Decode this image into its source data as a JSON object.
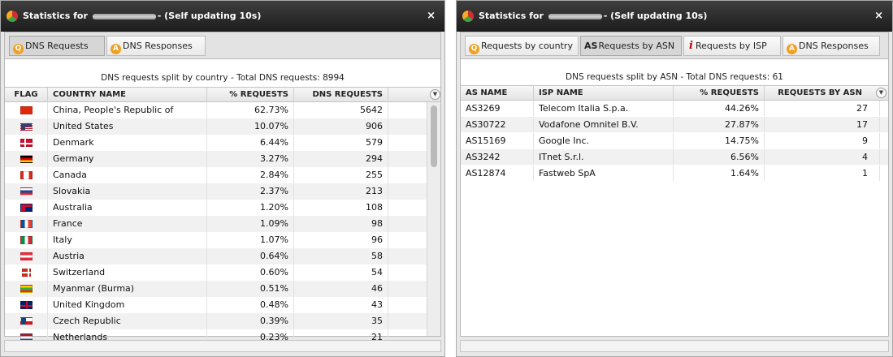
{
  "left_window": {
    "title_prefix": "Statistics for",
    "title_suffix": "- (Self updating 10s)",
    "close_glyph": "×",
    "tabs": [
      {
        "label": "DNS Requests",
        "icon": "Q",
        "icon_name": "requests-icon",
        "active": true
      },
      {
        "label": "DNS Responses",
        "icon": "A",
        "icon_name": "responses-icon",
        "active": false
      }
    ],
    "caption": "DNS requests split by country - Total DNS requests: 8994",
    "columns": [
      "FLAG",
      "COUNTRY NAME",
      "% REQUESTS",
      "DNS REQUESTS"
    ],
    "rows": [
      {
        "flag": "flag-cn",
        "country": "China, People's Republic of",
        "percent": "62.73%",
        "requests": "5642"
      },
      {
        "flag": "flag-us",
        "country": "United States",
        "percent": "10.07%",
        "requests": "906"
      },
      {
        "flag": "flag-dk",
        "country": "Denmark",
        "percent": "6.44%",
        "requests": "579"
      },
      {
        "flag": "flag-de",
        "country": "Germany",
        "percent": "3.27%",
        "requests": "294"
      },
      {
        "flag": "flag-ca",
        "country": "Canada",
        "percent": "2.84%",
        "requests": "255"
      },
      {
        "flag": "flag-sk",
        "country": "Slovakia",
        "percent": "2.37%",
        "requests": "213"
      },
      {
        "flag": "flag-au",
        "country": "Australia",
        "percent": "1.20%",
        "requests": "108"
      },
      {
        "flag": "flag-fr",
        "country": "France",
        "percent": "1.09%",
        "requests": "98"
      },
      {
        "flag": "flag-it",
        "country": "Italy",
        "percent": "1.07%",
        "requests": "96"
      },
      {
        "flag": "flag-at",
        "country": "Austria",
        "percent": "0.64%",
        "requests": "58"
      },
      {
        "flag": "flag-ch",
        "country": "Switzerland",
        "percent": "0.60%",
        "requests": "54"
      },
      {
        "flag": "flag-mm",
        "country": "Myanmar (Burma)",
        "percent": "0.51%",
        "requests": "46"
      },
      {
        "flag": "flag-gb",
        "country": "United Kingdom",
        "percent": "0.48%",
        "requests": "43"
      },
      {
        "flag": "flag-cz",
        "country": "Czech Republic",
        "percent": "0.39%",
        "requests": "35"
      },
      {
        "flag": "flag-nl",
        "country": "Netherlands",
        "percent": "0.23%",
        "requests": "21"
      }
    ]
  },
  "right_window": {
    "title_prefix": "Statistics for",
    "title_suffix": "- (Self updating 10s)",
    "close_glyph": "×",
    "tabs": [
      {
        "label": "Requests by country",
        "icon": "Q",
        "icon_name": "requests-icon",
        "active": false
      },
      {
        "label": "Requests by ASN",
        "icon": "AS",
        "icon_name": "asn-icon",
        "active": true
      },
      {
        "label": "Requests by ISP",
        "icon": "i",
        "icon_name": "info-icon",
        "active": false
      },
      {
        "label": "DNS Responses",
        "icon": "A",
        "icon_name": "responses-icon",
        "active": false
      }
    ],
    "caption": "DNS requests split by ASN - Total DNS requests: 61",
    "columns": [
      "AS NAME",
      "ISP NAME",
      "% REQUESTS",
      "REQUESTS BY ASN"
    ],
    "rows": [
      {
        "as_name": "AS3269",
        "isp": "Telecom Italia S.p.a.",
        "percent": "44.26%",
        "requests": "27"
      },
      {
        "as_name": "AS30722",
        "isp": "Vodafone Omnitel B.V.",
        "percent": "27.87%",
        "requests": "17"
      },
      {
        "as_name": "AS15169",
        "isp": "Google Inc.",
        "percent": "14.75%",
        "requests": "9"
      },
      {
        "as_name": "AS3242",
        "isp": "ITnet S.r.l.",
        "percent": "6.56%",
        "requests": "4"
      },
      {
        "as_name": "AS12874",
        "isp": "Fastweb SpA",
        "percent": "1.64%",
        "requests": "1"
      }
    ]
  }
}
